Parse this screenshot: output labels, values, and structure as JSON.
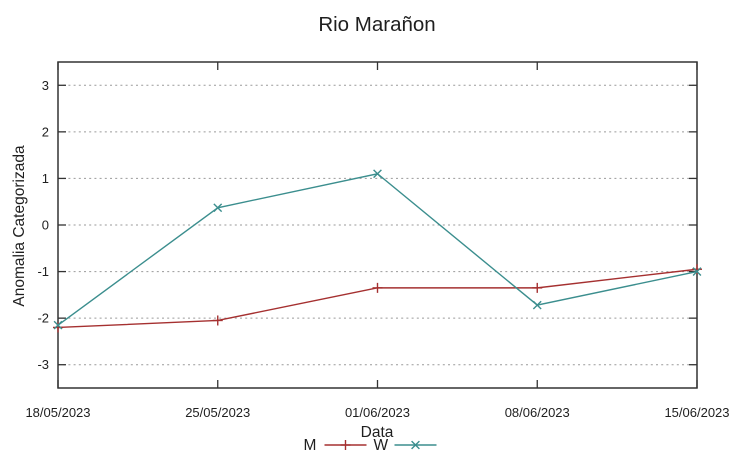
{
  "chart_data": {
    "type": "line",
    "title": "Rio Marañon",
    "xlabel": "Data",
    "ylabel": "Anomalia Categorizada",
    "categories": [
      "18/05/2023",
      "25/05/2023",
      "01/06/2023",
      "08/06/2023",
      "15/06/2023"
    ],
    "series": [
      {
        "name": "M",
        "color": "#a53030",
        "marker": "plus",
        "values": [
          -2.2,
          -2.05,
          -1.35,
          -1.35,
          -0.95
        ]
      },
      {
        "name": "W",
        "color": "#3b8e8e",
        "marker": "cross",
        "values": [
          -2.15,
          0.37,
          1.1,
          -1.72,
          -1.0
        ]
      }
    ],
    "ylim": [
      -3.5,
      3.5
    ],
    "yticks": [
      3,
      2,
      1,
      0,
      -1,
      -2,
      -3
    ],
    "grid": {
      "horizontal": true,
      "style": "dotted",
      "color": "#9a9a9a"
    },
    "legend_position": "bottom-center",
    "axis_color": "#333333",
    "text_color": "#1f1f1f",
    "background": "#ffffff"
  }
}
